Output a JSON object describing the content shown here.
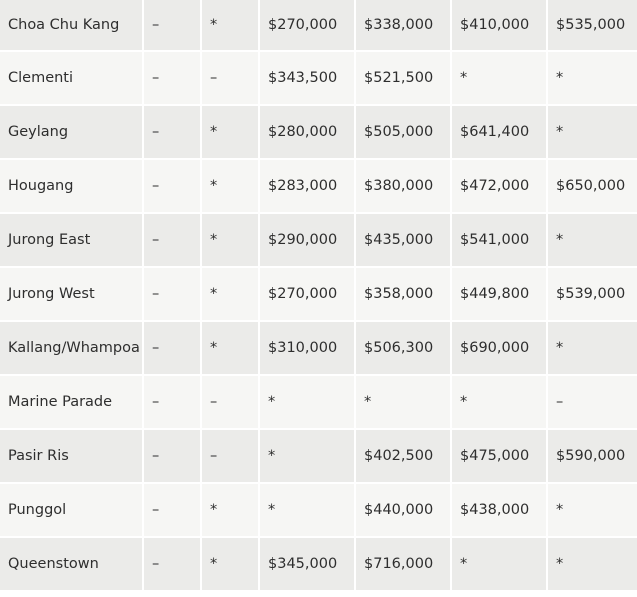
{
  "table": {
    "rows": [
      [
        "Choa Chu Kang",
        "–",
        "*",
        "$270,000",
        "$338,000",
        "$410,000",
        "$535,000"
      ],
      [
        "Clementi",
        "–",
        "–",
        "$343,500",
        "$521,500",
        "*",
        "*"
      ],
      [
        "Geylang",
        "–",
        "*",
        "$280,000",
        "$505,000",
        "$641,400",
        "*"
      ],
      [
        "Hougang",
        "–",
        "*",
        "$283,000",
        "$380,000",
        "$472,000",
        "$650,000"
      ],
      [
        "Jurong East",
        "–",
        "*",
        "$290,000",
        "$435,000",
        "$541,000",
        "*"
      ],
      [
        "Jurong West",
        "–",
        "*",
        "$270,000",
        "$358,000",
        "$449,800",
        "$539,000"
      ],
      [
        "Kallang/Whampoa",
        "–",
        "*",
        "$310,000",
        "$506,300",
        "$690,000",
        "*"
      ],
      [
        "Marine Parade",
        "–",
        "–",
        "*",
        "*",
        "*",
        "–"
      ],
      [
        "Pasir Ris",
        "–",
        "–",
        "*",
        "$402,500",
        "$475,000",
        "$590,000"
      ],
      [
        "Punggol",
        "–",
        "*",
        "*",
        "$440,000",
        "$438,000",
        "*"
      ],
      [
        "Queenstown",
        "–",
        "*",
        "$345,000",
        "$716,000",
        "*",
        "*"
      ]
    ]
  }
}
